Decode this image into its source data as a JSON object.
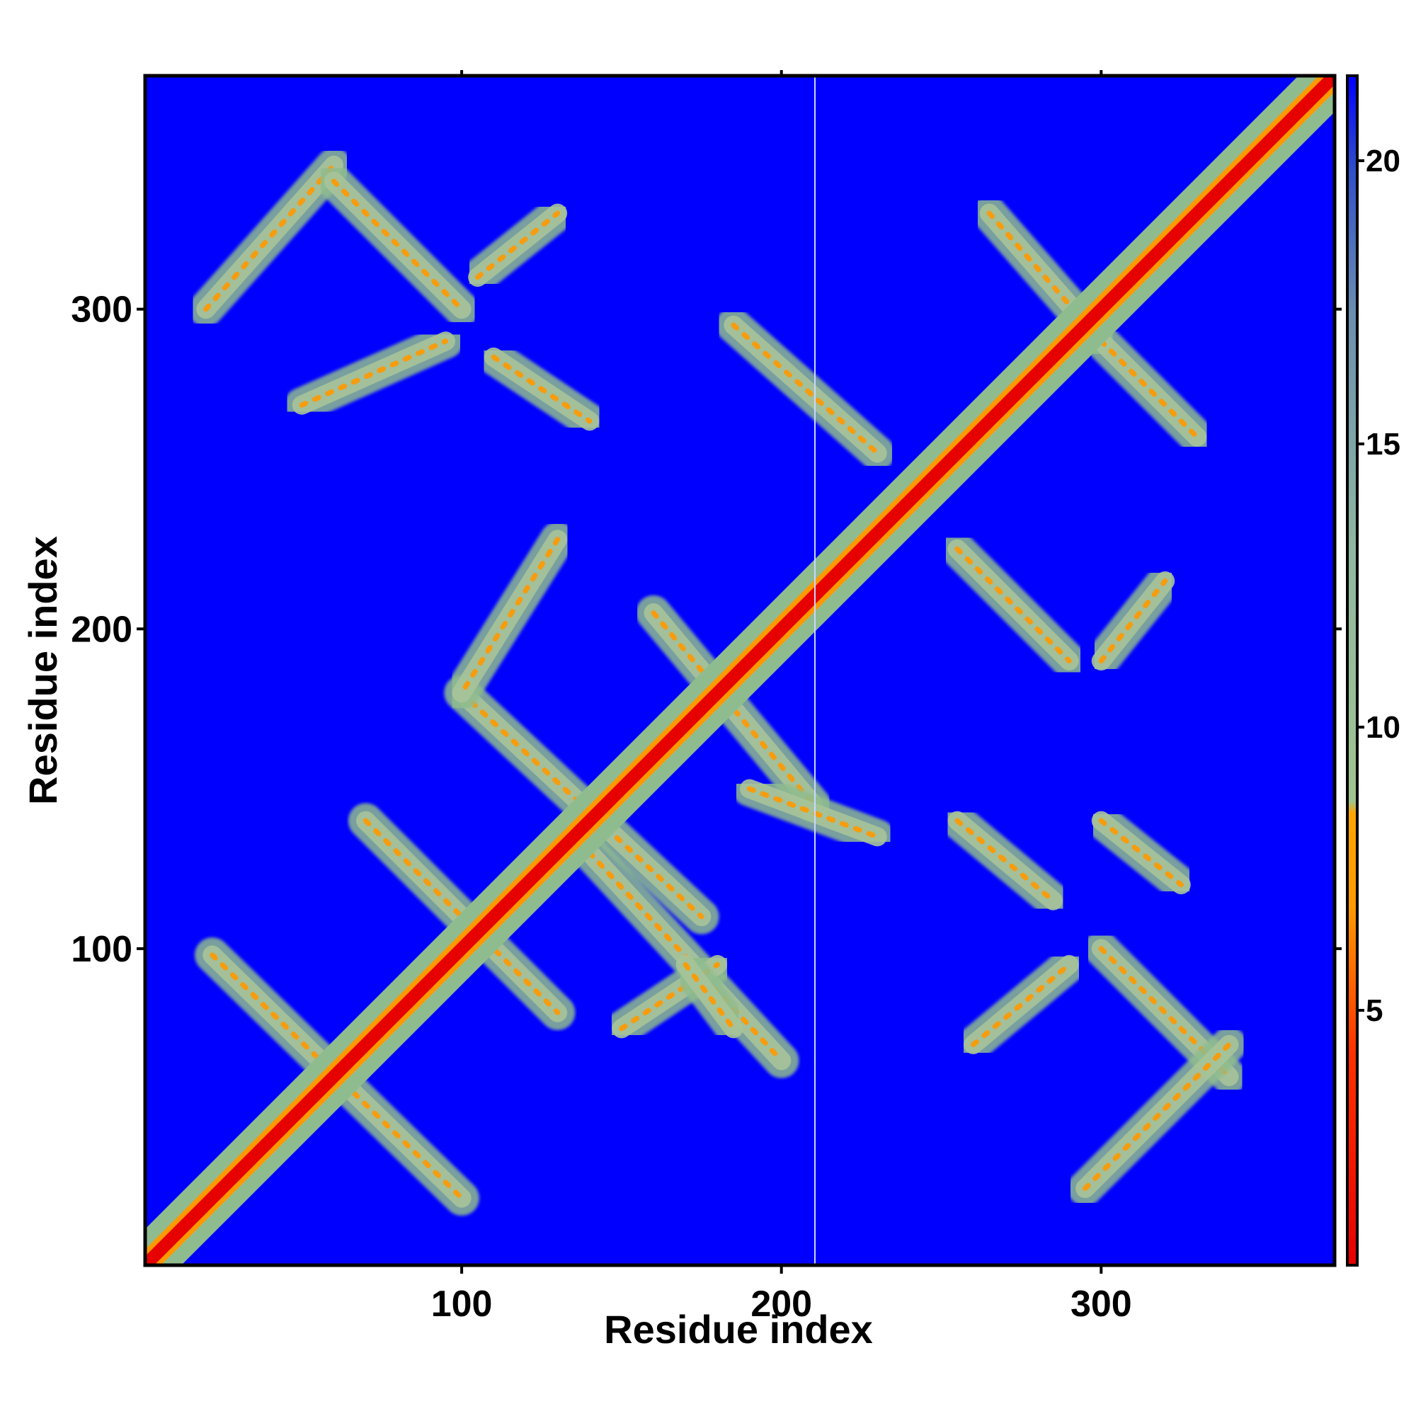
{
  "chart_data": {
    "type": "heatmap",
    "title": "",
    "xlabel": "Residue index",
    "ylabel": "Residue index",
    "xlim": [
      1,
      373
    ],
    "ylim": [
      1,
      373
    ],
    "x_ticks": [
      100,
      200,
      300
    ],
    "y_ticks": [
      100,
      200,
      300
    ],
    "x_tick_labels": [
      "100",
      "200",
      "300"
    ],
    "y_tick_labels": [
      "100",
      "200",
      "300"
    ],
    "colorbar": {
      "range": [
        0.5,
        21.5
      ],
      "ticks": [
        5,
        10,
        15,
        20
      ],
      "tick_labels": [
        "5",
        "10",
        "15",
        "20"
      ],
      "colors": [
        "#e60000",
        "#ff4000",
        "#ff9900",
        "#8fbc8f",
        "#4a7ab8",
        "#0000ff"
      ],
      "position": "right"
    },
    "colors": {
      "background": "#0000ff",
      "contact_near": "#e60000",
      "contact_mid": "#ff9900",
      "contact_far": "#8fbc8f"
    },
    "features": {
      "diagonal": {
        "from": [
          1,
          1
        ],
        "to": [
          373,
          373
        ]
      },
      "contact_bands": [
        {
          "from": [
            22,
            98
          ],
          "to": [
            100,
            22
          ]
        },
        {
          "from": [
            70,
            140
          ],
          "to": [
            130,
            80
          ]
        },
        {
          "from": [
            100,
            180
          ],
          "to": [
            175,
            110
          ]
        },
        {
          "from": [
            130,
            228
          ],
          "to": [
            100,
            180
          ]
        },
        {
          "from": [
            140,
            130
          ],
          "to": [
            200,
            65
          ]
        },
        {
          "from": [
            150,
            75
          ],
          "to": [
            180,
            95
          ]
        },
        {
          "from": [
            160,
            205
          ],
          "to": [
            210,
            145
          ]
        },
        {
          "from": [
            190,
            150
          ],
          "to": [
            230,
            135
          ]
        },
        {
          "from": [
            185,
            295
          ],
          "to": [
            230,
            255
          ]
        },
        {
          "from": [
            20,
            300
          ],
          "to": [
            60,
            345
          ]
        },
        {
          "from": [
            60,
            340
          ],
          "to": [
            100,
            300
          ]
        },
        {
          "from": [
            105,
            310
          ],
          "to": [
            130,
            330
          ]
        },
        {
          "from": [
            110,
            285
          ],
          "to": [
            140,
            265
          ]
        },
        {
          "from": [
            50,
            270
          ],
          "to": [
            95,
            290
          ]
        },
        {
          "from": [
            255,
            225
          ],
          "to": [
            290,
            190
          ]
        },
        {
          "from": [
            265,
            330
          ],
          "to": [
            300,
            290
          ]
        },
        {
          "from": [
            300,
            290
          ],
          "to": [
            330,
            260
          ]
        },
        {
          "from": [
            255,
            140
          ],
          "to": [
            285,
            115
          ]
        },
        {
          "from": [
            300,
            140
          ],
          "to": [
            325,
            120
          ]
        },
        {
          "from": [
            300,
            100
          ],
          "to": [
            340,
            60
          ]
        },
        {
          "from": [
            295,
            25
          ],
          "to": [
            340,
            70
          ]
        },
        {
          "from": [
            260,
            70
          ],
          "to": [
            290,
            95
          ]
        },
        {
          "from": [
            300,
            190
          ],
          "to": [
            320,
            215
          ]
        },
        {
          "from": [
            170,
            95
          ],
          "to": [
            185,
            75
          ]
        }
      ]
    }
  }
}
